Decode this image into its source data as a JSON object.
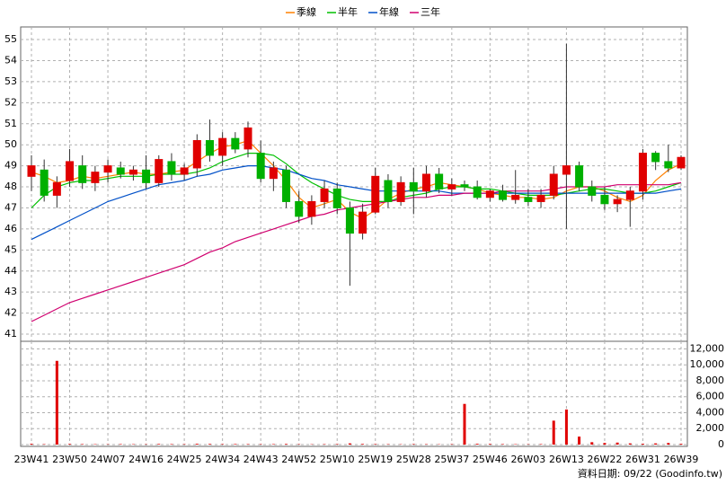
{
  "chart_data": [
    {
      "type": "candlestick",
      "legend_position": "top",
      "up_color": "#e00000",
      "down_color": "#00b000",
      "wick_color": "#333333",
      "ylim": [
        40.66,
        55.6
      ],
      "yticks": [
        41,
        42,
        43,
        44,
        45,
        46,
        47,
        48,
        49,
        50,
        51,
        52,
        53,
        54,
        55
      ],
      "grid": true,
      "open": [
        48.5,
        48.8,
        47.6,
        48.3,
        49.0,
        48.2,
        48.7,
        48.9,
        48.6,
        48.8,
        48.2,
        49.2,
        48.6,
        48.9,
        50.2,
        49.5,
        50.3,
        49.8,
        49.6,
        48.4,
        48.8,
        47.3,
        46.6,
        47.3,
        47.9,
        47.0,
        45.8,
        46.8,
        48.3,
        47.3,
        48.2,
        47.8,
        48.6,
        47.9,
        48.1,
        48.0,
        47.5,
        47.8,
        47.4,
        47.5,
        47.3,
        47.6,
        48.6,
        49.0,
        48.0,
        47.6,
        47.2,
        47.4,
        47.8,
        49.6,
        49.2,
        48.9
      ],
      "high": [
        49.5,
        49.3,
        48.5,
        49.8,
        49.5,
        49.0,
        49.3,
        49.2,
        49.0,
        49.5,
        49.5,
        49.6,
        49.1,
        50.5,
        51.2,
        50.6,
        50.6,
        51.1,
        50.2,
        49.2,
        49.0,
        47.8,
        47.6,
        48.3,
        48.2,
        47.3,
        47.2,
        48.9,
        48.6,
        48.5,
        48.9,
        49.0,
        48.9,
        48.4,
        48.3,
        48.3,
        47.9,
        48.1,
        48.8,
        47.9,
        47.9,
        49.0,
        54.8,
        49.2,
        48.3,
        48.0,
        47.6,
        48.0,
        49.8,
        49.7,
        50.0,
        49.5
      ],
      "low": [
        47.8,
        47.3,
        47.0,
        48.0,
        47.9,
        47.8,
        48.2,
        48.4,
        48.3,
        47.9,
        48.0,
        48.3,
        48.3,
        48.5,
        49.2,
        49.0,
        49.6,
        49.4,
        48.2,
        47.8,
        47.0,
        46.3,
        46.2,
        47.0,
        46.7,
        43.3,
        45.5,
        46.7,
        47.0,
        47.1,
        46.7,
        47.5,
        47.7,
        47.6,
        47.8,
        47.4,
        47.3,
        47.3,
        47.2,
        47.1,
        47.0,
        47.4,
        46.0,
        47.8,
        47.3,
        46.9,
        46.8,
        46.1,
        47.4,
        48.8,
        48.7,
        48.8
      ],
      "close": [
        49.0,
        47.6,
        48.2,
        49.2,
        48.2,
        48.7,
        49.0,
        48.6,
        48.8,
        48.2,
        49.3,
        48.6,
        48.9,
        50.2,
        49.5,
        50.3,
        49.8,
        50.8,
        48.4,
        48.9,
        47.3,
        46.6,
        47.3,
        47.9,
        47.0,
        45.8,
        46.8,
        48.5,
        47.3,
        48.2,
        47.8,
        48.6,
        47.9,
        48.1,
        48.0,
        47.5,
        47.8,
        47.4,
        47.6,
        47.3,
        47.6,
        48.6,
        49.0,
        48.0,
        47.6,
        47.2,
        47.4,
        47.8,
        49.6,
        49.2,
        48.9,
        49.4
      ],
      "series": [
        {
          "name": "季線",
          "color": "#ff8000",
          "values": [
            48.7,
            48.5,
            48.2,
            48.3,
            48.5,
            48.4,
            48.5,
            48.6,
            48.7,
            48.6,
            48.6,
            48.7,
            48.8,
            49.2,
            49.6,
            49.9,
            50.0,
            50.2,
            49.6,
            49.0,
            48.3,
            47.5,
            47.0,
            47.2,
            47.4,
            46.8,
            46.5,
            46.9,
            47.4,
            47.7,
            47.9,
            48.0,
            48.2,
            48.1,
            48.0,
            47.9,
            47.7,
            47.6,
            47.5,
            47.5,
            47.4,
            47.5,
            47.8,
            48.0,
            48.0,
            47.8,
            47.5,
            47.3,
            47.6,
            48.3,
            48.8,
            49.1
          ]
        },
        {
          "name": "半年",
          "color": "#00c000",
          "values": [
            47.0,
            47.6,
            48.0,
            48.2,
            48.3,
            48.3,
            48.4,
            48.5,
            48.5,
            48.5,
            48.6,
            48.6,
            48.6,
            48.7,
            48.9,
            49.2,
            49.4,
            49.6,
            49.6,
            49.5,
            49.1,
            48.6,
            48.2,
            47.9,
            47.6,
            47.4,
            47.3,
            47.3,
            47.3,
            47.5,
            47.6,
            47.7,
            47.9,
            48.0,
            48.0,
            47.9,
            47.9,
            47.8,
            47.7,
            47.6,
            47.6,
            47.6,
            47.7,
            47.8,
            47.9,
            47.9,
            47.8,
            47.7,
            47.7,
            47.8,
            48.0,
            48.2
          ]
        },
        {
          "name": "年線",
          "color": "#0050c8",
          "values": [
            45.5,
            45.8,
            46.1,
            46.4,
            46.7,
            47.0,
            47.3,
            47.5,
            47.7,
            47.9,
            48.1,
            48.2,
            48.3,
            48.5,
            48.6,
            48.8,
            48.9,
            49.0,
            49.0,
            48.9,
            48.8,
            48.6,
            48.4,
            48.3,
            48.1,
            48.0,
            47.9,
            47.8,
            47.8,
            47.8,
            47.8,
            47.8,
            47.8,
            47.7,
            47.7,
            47.7,
            47.7,
            47.7,
            47.7,
            47.7,
            47.7,
            47.7,
            47.7,
            47.7,
            47.7,
            47.7,
            47.7,
            47.7,
            47.7,
            47.7,
            47.8,
            47.9
          ]
        },
        {
          "name": "三年",
          "color": "#d0006f",
          "values": [
            41.6,
            41.9,
            42.2,
            42.5,
            42.7,
            42.9,
            43.1,
            43.3,
            43.5,
            43.7,
            43.9,
            44.1,
            44.3,
            44.6,
            44.9,
            45.1,
            45.4,
            45.6,
            45.8,
            46.0,
            46.2,
            46.4,
            46.6,
            46.7,
            46.9,
            47.0,
            47.1,
            47.2,
            47.3,
            47.4,
            47.5,
            47.5,
            47.6,
            47.6,
            47.7,
            47.7,
            47.7,
            47.8,
            47.8,
            47.8,
            47.8,
            47.9,
            48.0,
            48.0,
            48.0,
            48.0,
            48.1,
            48.1,
            48.1,
            48.1,
            48.1,
            48.2
          ]
        }
      ]
    },
    {
      "type": "bar",
      "color": "#e00000",
      "ylim": [
        0,
        12500
      ],
      "grid": true,
      "yticks": [
        0,
        {
          "value": 2000,
          "label": "2,000"
        },
        {
          "value": 4000,
          "label": "4,000"
        },
        {
          "value": 6000,
          "label": "6,000"
        },
        {
          "value": 8000,
          "label": "8,000"
        },
        {
          "value": 10000,
          "label": "10,000"
        },
        {
          "value": 12000,
          "label": "12,000"
        }
      ],
      "categories": [
        "23W41",
        null,
        null,
        "23W50",
        null,
        null,
        "24W07",
        null,
        null,
        "24W16",
        null,
        null,
        "24W25",
        null,
        null,
        "24W34",
        null,
        null,
        "24W43",
        null,
        null,
        "24W52",
        null,
        null,
        "25W10",
        null,
        null,
        "25W19",
        null,
        null,
        "25W28",
        null,
        null,
        "25W37",
        null,
        null,
        "25W46",
        null,
        null,
        "26W03",
        null,
        null,
        "26W13",
        null,
        null,
        "26W22",
        null,
        null,
        "26W31",
        null,
        null,
        "26W39"
      ],
      "values": [
        100,
        50,
        10500,
        80,
        60,
        50,
        40,
        60,
        50,
        40,
        80,
        60,
        50,
        100,
        80,
        60,
        70,
        60,
        50,
        60,
        80,
        50,
        40,
        50,
        60,
        150,
        80,
        60,
        50,
        40,
        60,
        50,
        40,
        50,
        5100,
        100,
        80,
        60,
        50,
        40,
        60,
        3000,
        4400,
        1000,
        300,
        200,
        250,
        150,
        100,
        150,
        200,
        100
      ]
    }
  ],
  "footer": "資料日期: 09/22  (Goodinfo.tw)"
}
